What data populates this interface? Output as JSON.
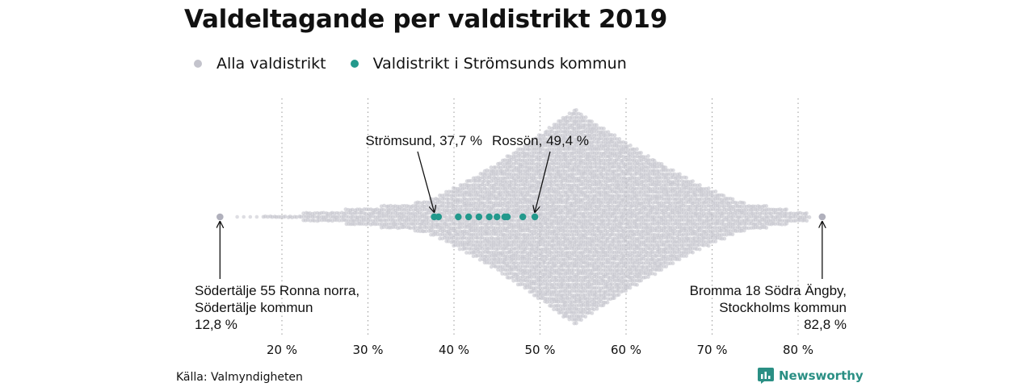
{
  "title": "Valdeltagande per valdistrikt 2019",
  "legend": [
    {
      "label": "Alla valdistrikt",
      "color": "#c3c3cc"
    },
    {
      "label": "Valdistrikt i Strömsunds kommun",
      "color": "#23998c"
    }
  ],
  "source": "Källa: Valmyndigheten",
  "brand": "Newsworthy",
  "chart_data": {
    "type": "scatter",
    "subtype": "beeswarm",
    "xlim": [
      10,
      86
    ],
    "x_ticks": [
      20,
      30,
      40,
      50,
      60,
      70,
      80
    ],
    "x_tick_labels": [
      "20 %",
      "30 %",
      "40 %",
      "50 %",
      "60 %",
      "70 %",
      "80 %"
    ],
    "grid": "vertical dotted",
    "series": [
      {
        "name": "Alla valdistrikt",
        "color": "#c3c3cc",
        "min": 12.8,
        "max": 82.8,
        "peak": 54
      },
      {
        "name": "Valdistrikt i Strömsunds kommun",
        "color": "#23998c",
        "values": [
          37.7,
          38.2,
          40.5,
          41.7,
          42.9,
          44.1,
          45.0,
          45.9,
          46.2,
          48.0,
          49.4
        ]
      }
    ],
    "annotations": [
      {
        "label": "Strömsund, 37,7 %",
        "value": 37.7
      },
      {
        "label": "Rossön, 49,4 %",
        "value": 49.4
      },
      {
        "lines": [
          "Södertälje 55 Ronna norra,",
          "Södertälje kommun",
          "12,8 %"
        ],
        "value": 12.8
      },
      {
        "lines": [
          "Bromma 18 Södra Ängby,",
          "Stockholms kommun",
          "82,8 %"
        ],
        "value": 82.8
      }
    ]
  }
}
